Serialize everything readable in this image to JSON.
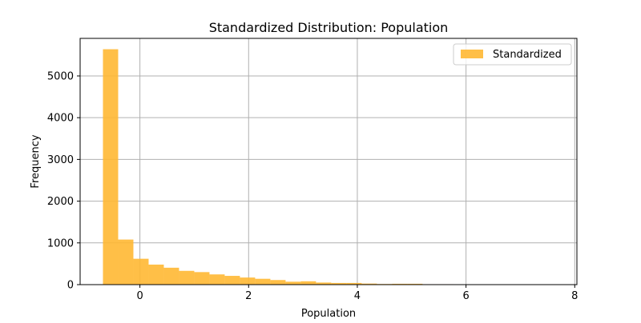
{
  "chart_data": {
    "type": "bar",
    "title": "Standardized Distribution: Population",
    "xlabel": "Population",
    "ylabel": "Frequency",
    "xlim": [
      -1.1,
      8.04
    ],
    "ylim": [
      0,
      5900
    ],
    "x_ticks": [
      0,
      2,
      4,
      6,
      8
    ],
    "y_ticks": [
      0,
      1000,
      2000,
      3000,
      4000,
      5000
    ],
    "grid": true,
    "legend_position": "top-right",
    "series": [
      {
        "name": "Standardized",
        "color": "#ffb833",
        "opacity": 0.9,
        "bin_edges": [
          -0.68,
          -0.4,
          -0.12,
          0.16,
          0.44,
          0.72,
          1.0,
          1.28,
          1.56,
          1.84,
          2.12,
          2.4,
          2.68,
          2.96,
          3.24,
          3.52,
          3.8,
          4.08,
          4.36,
          4.64,
          4.92,
          5.2,
          5.48,
          5.76,
          6.04,
          6.32,
          6.6,
          6.88,
          7.16,
          7.44,
          7.72
        ],
        "counts": [
          5640,
          1080,
          620,
          480,
          405,
          330,
          300,
          245,
          210,
          170,
          140,
          110,
          70,
          80,
          50,
          40,
          40,
          25,
          15,
          20,
          20,
          10,
          10,
          5,
          5,
          5,
          5,
          3,
          3,
          3
        ]
      }
    ]
  }
}
